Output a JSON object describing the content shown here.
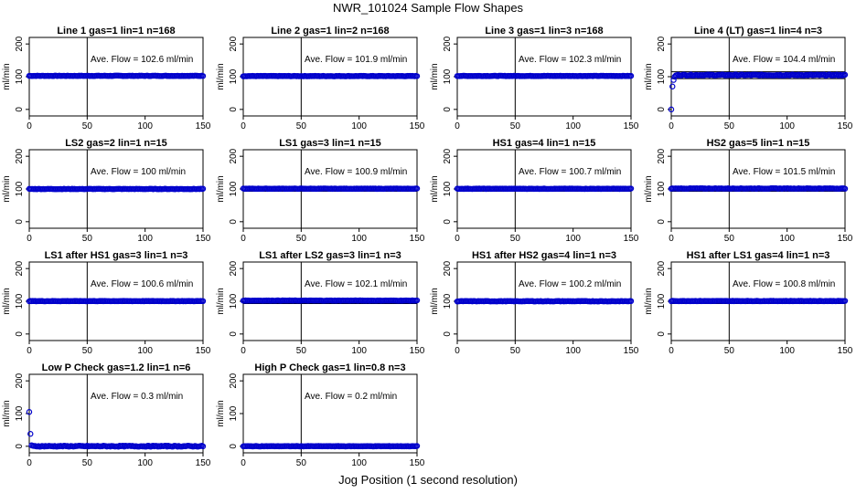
{
  "figure": {
    "title": "NWR_101024  Sample Flow Shapes",
    "xlabel": "Jog Position (1 second resolution)"
  },
  "colors": {
    "points": "#0000cc",
    "axes": "#000000"
  },
  "chart_data": [
    {
      "type": "scatter",
      "title": "Line 1 gas=1 lin=1 n=168",
      "ylabel": "ml/min",
      "xlim": [
        0,
        150
      ],
      "ylim": [
        -20,
        220
      ],
      "xticks": [
        0,
        50,
        100,
        150
      ],
      "yticks": [
        0,
        100,
        200
      ],
      "vline": 50,
      "hlines": [],
      "annotation": "Ave. Flow =  102.6  ml/min",
      "series": [
        {
          "values": [
            102.6
          ]
        }
      ]
    },
    {
      "type": "scatter",
      "title": "Line 2 gas=1 lin=2 n=168",
      "ylabel": "ml/min",
      "xlim": [
        0,
        150
      ],
      "ylim": [
        -20,
        220
      ],
      "xticks": [
        0,
        50,
        100,
        150
      ],
      "yticks": [
        0,
        100,
        200
      ],
      "vline": 50,
      "hlines": [],
      "annotation": "Ave. Flow =  101.9  ml/min",
      "series": [
        {
          "values": [
            101.9
          ]
        }
      ]
    },
    {
      "type": "scatter",
      "title": "Line 3 gas=1 lin=3 n=168",
      "ylabel": "ml/min",
      "xlim": [
        0,
        150
      ],
      "ylim": [
        -20,
        220
      ],
      "xticks": [
        0,
        50,
        100,
        150
      ],
      "yticks": [
        0,
        100,
        200
      ],
      "vline": 50,
      "hlines": [],
      "annotation": "Ave. Flow =  102.3  ml/min",
      "series": [
        {
          "values": [
            102.3
          ]
        }
      ]
    },
    {
      "type": "scatter",
      "title": "Line 4 (LT) gas=1 lin=4 n=3",
      "ylabel": "ml/min",
      "xlim": [
        0,
        150
      ],
      "ylim": [
        -20,
        220
      ],
      "xticks": [
        0,
        50,
        100,
        150
      ],
      "yticks": [
        0,
        100,
        200
      ],
      "vline": 50,
      "hlines": [
        94,
        115
      ],
      "annotation": "Ave. Flow =  104.4  ml/min",
      "series": [
        {
          "values": [
            0,
            70,
            90,
            100,
            104,
            105
          ]
        }
      ]
    },
    {
      "type": "scatter",
      "title": "LS2 gas=2 lin=1 n=15",
      "ylabel": "ml/min",
      "xlim": [
        0,
        150
      ],
      "ylim": [
        -20,
        220
      ],
      "xticks": [
        0,
        50,
        100,
        150
      ],
      "yticks": [
        0,
        100,
        200
      ],
      "vline": 50,
      "hlines": [
        93,
        107
      ],
      "annotation": "Ave. Flow =  100  ml/min",
      "series": [
        {
          "values": [
            100
          ]
        }
      ]
    },
    {
      "type": "scatter",
      "title": "LS1 gas=3 lin=1 n=15",
      "ylabel": "ml/min",
      "xlim": [
        0,
        150
      ],
      "ylim": [
        -20,
        220
      ],
      "xticks": [
        0,
        50,
        100,
        150
      ],
      "yticks": [
        0,
        100,
        200
      ],
      "vline": 50,
      "hlines": [
        93,
        107
      ],
      "annotation": "Ave. Flow =  100.9  ml/min",
      "series": [
        {
          "values": [
            100.9
          ]
        }
      ]
    },
    {
      "type": "scatter",
      "title": "HS1 gas=4 lin=1 n=15",
      "ylabel": "ml/min",
      "xlim": [
        0,
        150
      ],
      "ylim": [
        -20,
        220
      ],
      "xticks": [
        0,
        50,
        100,
        150
      ],
      "yticks": [
        0,
        100,
        200
      ],
      "vline": 50,
      "hlines": [
        93,
        107
      ],
      "annotation": "Ave. Flow =  100.7  ml/min",
      "series": [
        {
          "values": [
            100.7
          ]
        }
      ]
    },
    {
      "type": "scatter",
      "title": "HS2 gas=5 lin=1 n=15",
      "ylabel": "ml/min",
      "xlim": [
        0,
        150
      ],
      "ylim": [
        -20,
        220
      ],
      "xticks": [
        0,
        50,
        100,
        150
      ],
      "yticks": [
        0,
        100,
        200
      ],
      "vline": 50,
      "hlines": [
        93,
        107
      ],
      "annotation": "Ave. Flow =  101.5  ml/min",
      "series": [
        {
          "values": [
            101.5
          ]
        }
      ]
    },
    {
      "type": "scatter",
      "title": "LS1 after HS1 gas=3 lin=1 n=3",
      "ylabel": "ml/min",
      "xlim": [
        0,
        150
      ],
      "ylim": [
        -20,
        220
      ],
      "xticks": [
        0,
        50,
        100,
        150
      ],
      "yticks": [
        0,
        100,
        200
      ],
      "vline": 50,
      "hlines": [
        93,
        107
      ],
      "annotation": "Ave. Flow =  100.6  ml/min",
      "series": [
        {
          "values": [
            100.6
          ]
        }
      ]
    },
    {
      "type": "scatter",
      "title": "LS1 after LS2 gas=3 lin=1 n=3",
      "ylabel": "ml/min",
      "xlim": [
        0,
        150
      ],
      "ylim": [
        -20,
        220
      ],
      "xticks": [
        0,
        50,
        100,
        150
      ],
      "yticks": [
        0,
        100,
        200
      ],
      "vline": 50,
      "hlines": [
        93,
        107
      ],
      "annotation": "Ave. Flow =  102.1  ml/min",
      "series": [
        {
          "values": [
            102.1
          ]
        }
      ]
    },
    {
      "type": "scatter",
      "title": "HS1 after HS2 gas=4 lin=1 n=3",
      "ylabel": "ml/min",
      "xlim": [
        0,
        150
      ],
      "ylim": [
        -20,
        220
      ],
      "xticks": [
        0,
        50,
        100,
        150
      ],
      "yticks": [
        0,
        100,
        200
      ],
      "vline": 50,
      "hlines": [
        93,
        107
      ],
      "annotation": "Ave. Flow =  100.2  ml/min",
      "series": [
        {
          "values": [
            100.2
          ]
        }
      ]
    },
    {
      "type": "scatter",
      "title": "HS1 after LS1 gas=4 lin=1 n=3",
      "ylabel": "ml/min",
      "xlim": [
        0,
        150
      ],
      "ylim": [
        -20,
        220
      ],
      "xticks": [
        0,
        50,
        100,
        150
      ],
      "yticks": [
        0,
        100,
        200
      ],
      "vline": 50,
      "hlines": [
        93,
        107
      ],
      "annotation": "Ave. Flow =  100.8  ml/min",
      "series": [
        {
          "values": [
            100.8
          ]
        }
      ]
    },
    {
      "type": "scatter",
      "title": "Low P Check gas=1.2 lin=1 n=6",
      "ylabel": "ml/min",
      "xlim": [
        0,
        150
      ],
      "ylim": [
        -20,
        220
      ],
      "xticks": [
        0,
        50,
        100,
        150
      ],
      "yticks": [
        0,
        100,
        200
      ],
      "vline": 50,
      "hlines": [],
      "annotation": "Ave. Flow =  0.3  ml/min",
      "series": [
        {
          "values": [
            105,
            38,
            3,
            0.3
          ]
        }
      ]
    },
    {
      "type": "scatter",
      "title": "High P Check gas=1 lin=0.8 n=3",
      "ylabel": "ml/min",
      "xlim": [
        0,
        150
      ],
      "ylim": [
        -20,
        220
      ],
      "xticks": [
        0,
        50,
        100,
        150
      ],
      "yticks": [
        0,
        100,
        200
      ],
      "vline": 50,
      "hlines": [],
      "annotation": "Ave. Flow =  0.2  ml/min",
      "series": [
        {
          "values": [
            0.2
          ]
        }
      ]
    }
  ]
}
